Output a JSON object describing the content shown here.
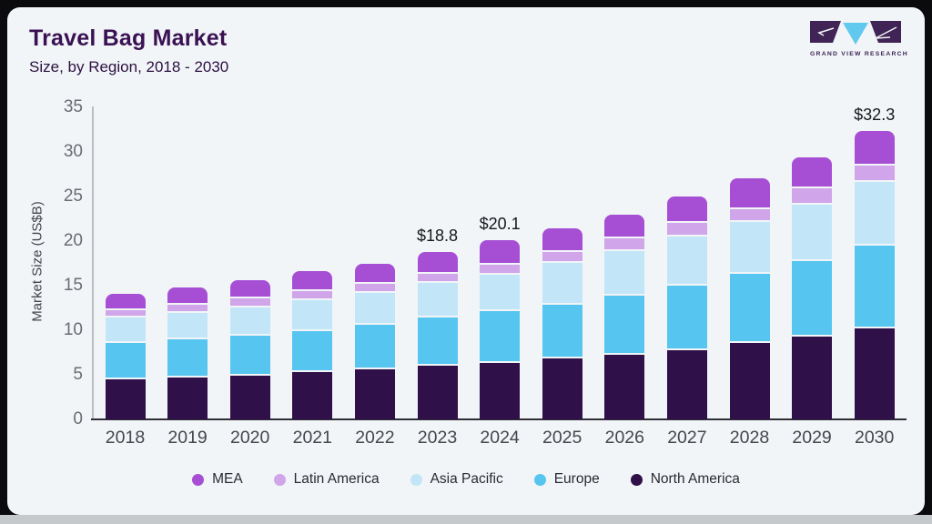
{
  "header": {
    "title": "Travel Bag Market",
    "subtitle": "Size, by Region, 2018 - 2030"
  },
  "logo": {
    "caption": "GRAND VIEW RESEARCH",
    "dark_color": "#3f2455",
    "accent_color": "#62c9ee"
  },
  "chart_data": {
    "type": "bar",
    "stacked": true,
    "title": "Travel Bag Market",
    "subtitle": "Size, by Region, 2018 - 2030",
    "xlabel": "",
    "ylabel": "Market Size (US$B)",
    "ylim": [
      0,
      35
    ],
    "yticks": [
      0,
      5,
      10,
      15,
      20,
      25,
      30,
      35
    ],
    "grid": false,
    "legend_position": "bottom",
    "categories": [
      "2018",
      "2019",
      "2020",
      "2021",
      "2022",
      "2023",
      "2024",
      "2025",
      "2026",
      "2027",
      "2028",
      "2029",
      "2030"
    ],
    "series": [
      {
        "name": "North America",
        "color": "#2f1048",
        "values": [
          4.7,
          4.9,
          5.1,
          5.5,
          5.8,
          6.2,
          6.5,
          7.0,
          7.5,
          8.0,
          8.8,
          9.5,
          10.4
        ]
      },
      {
        "name": "Europe",
        "color": "#56c5f0",
        "values": [
          4.1,
          4.3,
          4.5,
          4.6,
          5.0,
          5.4,
          5.8,
          6.1,
          6.6,
          7.2,
          7.7,
          8.5,
          9.3
        ]
      },
      {
        "name": "Asia Pacific",
        "color": "#c2e6f8",
        "values": [
          2.8,
          2.9,
          3.2,
          3.5,
          3.6,
          3.9,
          4.1,
          4.7,
          5.0,
          5.5,
          5.8,
          6.3,
          7.1
        ]
      },
      {
        "name": "Latin America",
        "color": "#d0a5e9",
        "values": [
          0.9,
          1.0,
          1.0,
          1.0,
          1.0,
          1.0,
          1.2,
          1.2,
          1.4,
          1.5,
          1.5,
          1.8,
          1.9
        ]
      },
      {
        "name": "MEA",
        "color": "#a64fd4",
        "values": [
          1.6,
          1.7,
          1.8,
          2.0,
          2.1,
          2.3,
          2.5,
          2.4,
          2.5,
          2.8,
          3.2,
          3.3,
          3.6
        ]
      }
    ],
    "totals": [
      14.1,
      14.8,
      15.6,
      16.6,
      17.5,
      18.8,
      20.1,
      21.4,
      23.0,
      25.0,
      27.0,
      29.4,
      32.3
    ],
    "total_labels": {
      "2023": "$18.8",
      "2024": "$20.1",
      "2030": "$32.3"
    },
    "legend": [
      "MEA",
      "Latin America",
      "Asia Pacific",
      "Europe",
      "North America"
    ]
  }
}
